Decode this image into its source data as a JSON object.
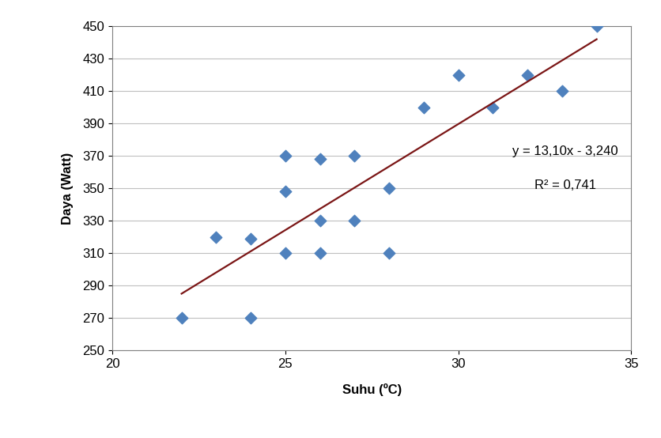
{
  "chart_data": {
    "type": "scatter",
    "x_label": "Suhu (ºC)",
    "y_label": "Daya (Watt)",
    "annotations": [
      "y = 13,10x - 3,240",
      "R² = 0,741"
    ],
    "series": [
      {
        "type": "scatter",
        "color": "#4f81bd",
        "marker": "diamond",
        "x": [
          22,
          23,
          24,
          24,
          25,
          25,
          25,
          26,
          26,
          26,
          27,
          27,
          28,
          28,
          29,
          30,
          31,
          32,
          33,
          34
        ],
        "values": [
          270,
          320,
          319,
          270,
          370,
          348,
          310,
          368,
          330,
          310,
          370,
          330,
          350,
          310,
          400,
          420,
          400,
          420,
          410,
          450
        ]
      },
      {
        "type": "line",
        "color": "#7b1616",
        "line_style": "solid",
        "x": [
          22,
          34
        ],
        "values": [
          285,
          442
        ]
      }
    ],
    "xlim": [
      20,
      35
    ],
    "xticks": [
      20,
      25,
      30,
      35
    ],
    "ylim": [
      250,
      450
    ],
    "yticks": [
      250,
      270,
      290,
      310,
      330,
      350,
      370,
      390,
      410,
      430,
      450
    ],
    "grid": true
  }
}
